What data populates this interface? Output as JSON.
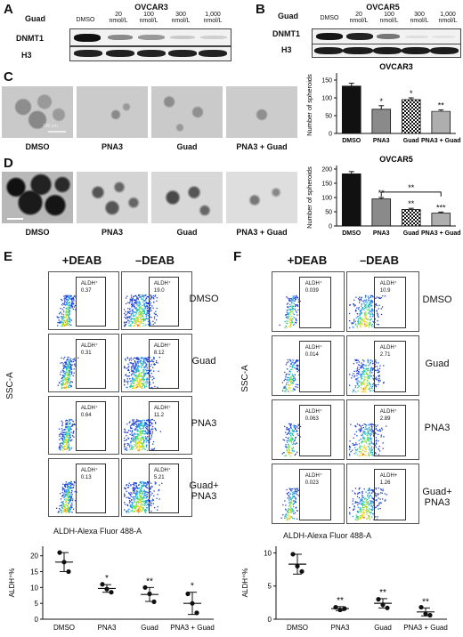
{
  "panels": {
    "A": "A",
    "B": "B",
    "C": "C",
    "D": "D",
    "E": "E",
    "F": "F"
  },
  "blotA": {
    "title": "OVCAR3",
    "guad": "Guad",
    "lanes": [
      "DMSO",
      "20 nmol/L",
      "100 nmol/L",
      "300 nmol/L",
      "1,000 nmol/L"
    ],
    "rows": [
      "DNMT1",
      "H3"
    ]
  },
  "blotB": {
    "title": "OVCAR5",
    "guad": "Guad",
    "lanes": [
      "DMSO",
      "20 nmol/L",
      "100 nmol/L",
      "300 nmol/L",
      "1,000 nmol/L"
    ],
    "rows": [
      "DNMT1",
      "H3"
    ]
  },
  "imgLabels": [
    "DMSO",
    "PNA3",
    "Guad",
    "PNA3 + Guad"
  ],
  "scaleBar": "100 μm",
  "flowE": {
    "cols": [
      "+DEAB",
      "–DEAB"
    ],
    "rows": [
      "DMSO",
      "Guad",
      "PNA3",
      "Guad+ PNA3"
    ],
    "gate": "ALDH⁺",
    "deab": [
      "0.37",
      "0.31",
      "0.64",
      "0.13"
    ],
    "nodeab": [
      "19.0",
      "8.12",
      "11.2",
      "5.21"
    ],
    "yaxis": "SSC-A",
    "xaxis": "ALDH-Alexa Fluor 488-A"
  },
  "flowF": {
    "cols": [
      "+DEAB",
      "–DEAB"
    ],
    "rows": [
      "DMSO",
      "Guad",
      "PNA3",
      "Guad+ PNA3"
    ],
    "gate": "ALDH⁺",
    "gateAlt": "ALDH+",
    "deab": [
      "0.039",
      "0.014",
      "0.063",
      "0.023"
    ],
    "nodeab": [
      "10.9",
      "2.71",
      "2.89",
      "1.26"
    ],
    "yaxis": "SSC-A",
    "xaxis": "ALDH-Alexa Fluor 488-A"
  },
  "chart_data": [
    {
      "id": "C",
      "type": "bar",
      "title": "OVCAR3",
      "ylabel": "Number of spheroids",
      "categories": [
        "DMSO",
        "PNA3",
        "Guad",
        "PNA3 + Guad"
      ],
      "values": [
        133,
        68,
        95,
        62
      ],
      "errors": [
        8,
        10,
        5,
        4
      ],
      "ylim": [
        0,
        160
      ],
      "yticks": [
        0,
        50,
        100,
        150
      ],
      "sig": [
        "",
        "*",
        "*",
        "**"
      ],
      "fills": [
        "#111111",
        "#8a8a8a",
        "checker",
        "hatch"
      ]
    },
    {
      "id": "D",
      "type": "bar",
      "title": "OVCAR5",
      "ylabel": "Number of spheroids",
      "categories": [
        "DMSO",
        "PNA3",
        "Guad",
        "PNA3 + Guad"
      ],
      "values": [
        183,
        95,
        58,
        45
      ],
      "errors": [
        8,
        5,
        4,
        4
      ],
      "ylim": [
        0,
        200
      ],
      "yticks": [
        0,
        50,
        100,
        150,
        200
      ],
      "sig": [
        "",
        "**",
        "**",
        "***"
      ],
      "bracket": "**",
      "fills": [
        "#111111",
        "#8a8a8a",
        "checker",
        "hatch"
      ]
    },
    {
      "id": "E",
      "type": "scatter",
      "ylabel": "ALDH⁺%",
      "categories": [
        "DMSO",
        "PNA3",
        "Guad",
        "PNA3 + Guad"
      ],
      "ylim": [
        0,
        23
      ],
      "yticks": [
        0,
        5,
        10,
        15,
        20
      ],
      "points": [
        [
          21,
          18,
          15
        ],
        [
          11,
          9.5,
          8.5
        ],
        [
          10,
          8,
          5.5
        ],
        [
          8,
          5,
          2
        ]
      ],
      "mean": [
        18,
        9.7,
        7.8,
        5
      ],
      "sd": [
        3,
        1.2,
        2.2,
        3.5
      ],
      "sig": [
        "",
        "*",
        "**",
        "*"
      ]
    },
    {
      "id": "F",
      "type": "scatter",
      "ylabel": "ALDH⁺%",
      "categories": [
        "DMSO",
        "PNA3",
        "Guad",
        "PNA3 + Guad"
      ],
      "ylim": [
        0,
        11
      ],
      "yticks": [
        0,
        5,
        10
      ],
      "points": [
        [
          9.8,
          8,
          7.2
        ],
        [
          1.8,
          1.4,
          1.6
        ],
        [
          3,
          2.2,
          1.7
        ],
        [
          1.8,
          0.8,
          0.6
        ]
      ],
      "mean": [
        8.3,
        1.6,
        2.4,
        1.1
      ],
      "sd": [
        1.5,
        0.3,
        0.7,
        0.6
      ],
      "sig": [
        "",
        "**",
        "**",
        "**"
      ]
    }
  ]
}
